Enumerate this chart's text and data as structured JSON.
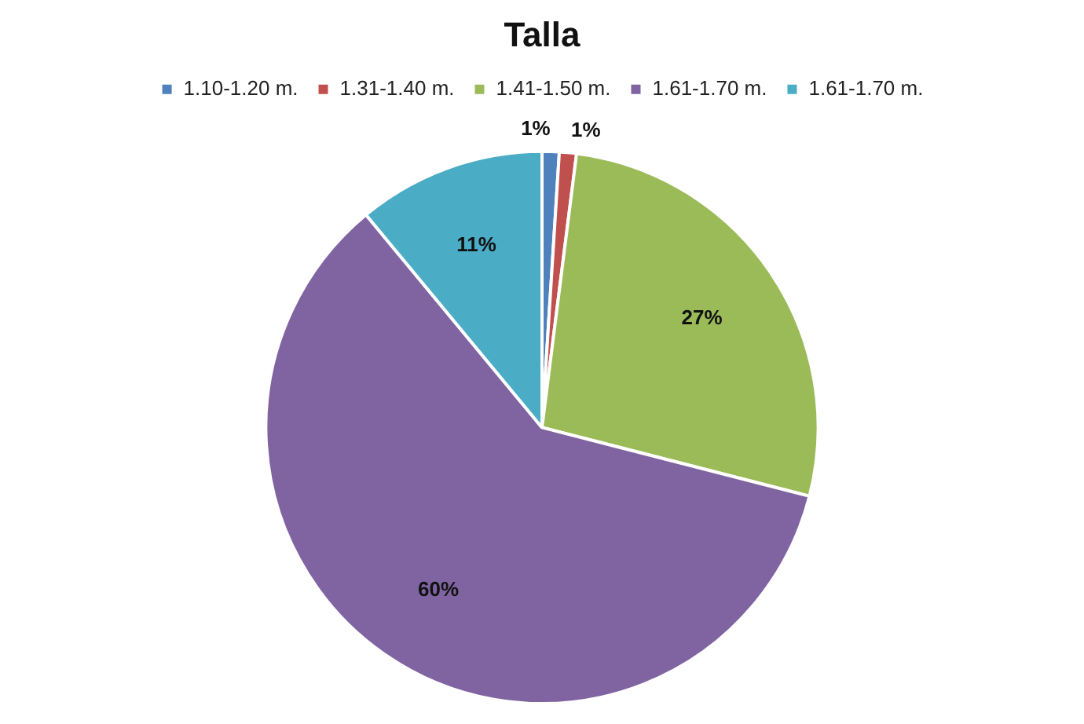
{
  "chart_data": {
    "type": "pie",
    "title": "Talla",
    "categories": [
      "1.10-1.20 m.",
      "1.31-1.40 m.",
      "1.41-1.50 m.",
      "1.61-1.70 m.",
      "1.61-1.70 m."
    ],
    "values": [
      1,
      1,
      27,
      60,
      11
    ],
    "colors": [
      "#4f81bd",
      "#c0504d",
      "#9bbb59",
      "#8064a2",
      "#4bacc6"
    ],
    "value_labels": [
      "1%",
      "1%",
      "27%",
      "60%",
      "11%"
    ],
    "legend": "top"
  }
}
